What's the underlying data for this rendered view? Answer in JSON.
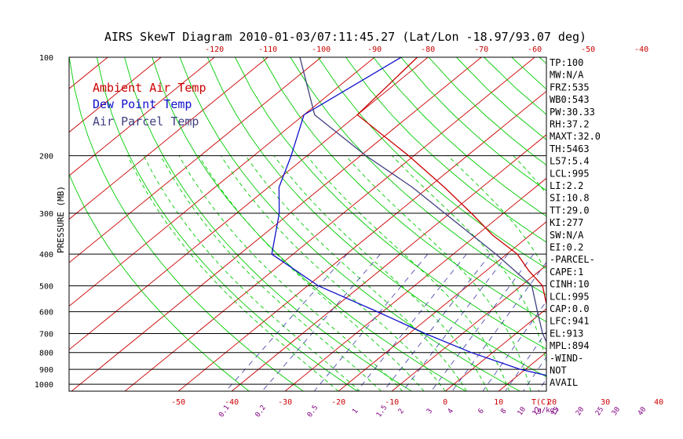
{
  "title": "AIRS SkewT Diagram 2010-01-03/07:11:45.27 (Lat/Lon -18.97/93.07 deg)",
  "ylabel": "PRESSURE (MB)",
  "units_label": "T(C)",
  "mixing_units_label": "(g/kg)",
  "legend": {
    "ambient": {
      "label": "Ambient Air Temp",
      "color": "#cc0000"
    },
    "dew": {
      "label": "Dew Point Temp",
      "color": "#1010cc"
    },
    "parcel": {
      "label": "Air Parcel Temp",
      "color": "#404080"
    }
  },
  "colors": {
    "isotherm": "#cc0000",
    "dry_adiabat": "#00cc00",
    "moist_adiabat": "#00cc00",
    "mixing_ratio": "#5050b0",
    "isobar": "#000000"
  },
  "stats": [
    "TP:100",
    "MW:N/A",
    "FRZ:535",
    "WB0:543",
    "PW:30.33",
    "RH:37.2",
    "MAXT:32.0",
    "TH:5463",
    "L57:5.4",
    "LCL:995",
    "LI:2.2",
    "SI:10.8",
    "TT:29.0",
    "KI:277",
    "SW:N/A",
    "EI:0.2",
    "-PARCEL-",
    "CAPE:1",
    "CINH:10",
    "LCL:995",
    "CAP:0.0",
    "LFC:941",
    "EL:913",
    "MPL:894",
    "-WIND-",
    "NOT",
    "AVAIL"
  ],
  "chart_data": {
    "type": "skewt",
    "pressure_ticks": [
      "100",
      "200",
      "300",
      "400",
      "500",
      "600",
      "700",
      "800",
      "900",
      "1000"
    ],
    "top_temp_ticks": [
      "-120",
      "-110",
      "-100",
      "-90",
      "-80",
      "-70",
      "-60",
      "-50",
      "-40"
    ],
    "bottom_temp_ticks": [
      "-50",
      "-40",
      "-30",
      "-20",
      "-10",
      "0",
      "10",
      "20",
      "30",
      "40"
    ],
    "mixing_ratio_ticks": [
      "0.1",
      "0.2",
      "0.5",
      "1",
      "1.5",
      "2",
      "3",
      "4",
      "6",
      "8",
      "10",
      "12",
      "15",
      "20",
      "25",
      "30",
      "40"
    ],
    "series": [
      {
        "name": "Ambient Air Temp",
        "points": [
          {
            "p": 100,
            "t": -82
          },
          {
            "p": 150,
            "t": -80
          },
          {
            "p": 200,
            "t": -61
          },
          {
            "p": 250,
            "t": -47
          },
          {
            "p": 300,
            "t": -36
          },
          {
            "p": 350,
            "t": -27
          },
          {
            "p": 400,
            "t": -18
          },
          {
            "p": 450,
            "t": -12
          },
          {
            "p": 500,
            "t": -6
          },
          {
            "p": 600,
            "t": 1
          },
          {
            "p": 700,
            "t": 7
          },
          {
            "p": 800,
            "t": 13
          },
          {
            "p": 900,
            "t": 20
          },
          {
            "p": 950,
            "t": 20
          },
          {
            "p": 1000,
            "t": 24
          }
        ]
      },
      {
        "name": "Dew Point Temp",
        "points": [
          {
            "p": 100,
            "t": -85
          },
          {
            "p": 150,
            "t": -90
          },
          {
            "p": 200,
            "t": -83
          },
          {
            "p": 250,
            "t": -78
          },
          {
            "p": 300,
            "t": -72
          },
          {
            "p": 400,
            "t": -64
          },
          {
            "p": 500,
            "t": -48
          },
          {
            "p": 600,
            "t": -31
          },
          {
            "p": 700,
            "t": -17
          },
          {
            "p": 800,
            "t": -4
          },
          {
            "p": 900,
            "t": 9
          },
          {
            "p": 950,
            "t": 17
          },
          {
            "p": 1000,
            "t": 21
          }
        ]
      },
      {
        "name": "Air Parcel Temp",
        "points": [
          {
            "p": 100,
            "t": -104
          },
          {
            "p": 150,
            "t": -88
          },
          {
            "p": 200,
            "t": -69
          },
          {
            "p": 250,
            "t": -53
          },
          {
            "p": 300,
            "t": -41
          },
          {
            "p": 400,
            "t": -22
          },
          {
            "p": 500,
            "t": -8
          },
          {
            "p": 600,
            "t": -1
          },
          {
            "p": 700,
            "t": 5
          },
          {
            "p": 800,
            "t": 11
          },
          {
            "p": 900,
            "t": 16
          },
          {
            "p": 950,
            "t": 19
          },
          {
            "p": 1000,
            "t": 23
          }
        ]
      }
    ]
  }
}
